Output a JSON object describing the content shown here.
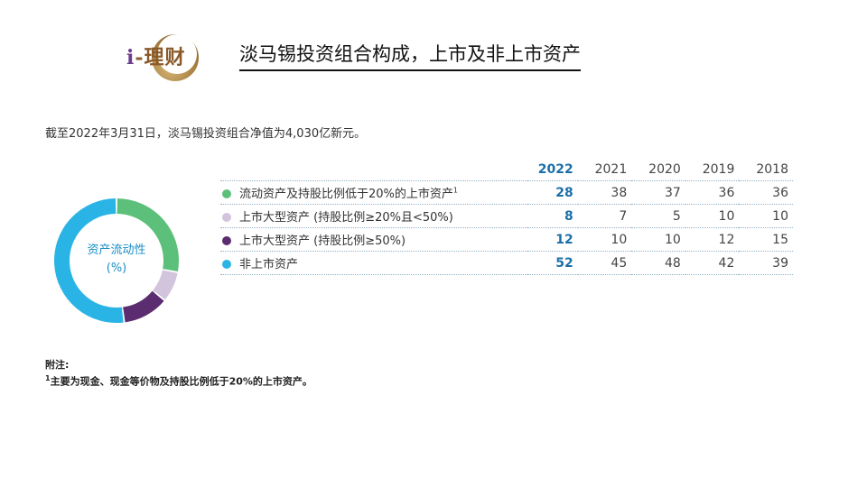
{
  "logo": {
    "text_i": "i",
    "text_rest": "-理财"
  },
  "title": "淡马锡投资组合构成，上市及非上市资产",
  "intro": "截至2022年3月31日，淡马锡投资组合净值为4,030亿新元。",
  "donut_center": {
    "line1": "资产流动性",
    "line2": "(%)"
  },
  "chart_data": {
    "type": "table",
    "columns": [
      "2022",
      "2021",
      "2020",
      "2019",
      "2018"
    ],
    "donut_year": "2022",
    "rows": [
      {
        "label": "流动资产及持股比例低于20%的上市资产",
        "footnote": "1",
        "color": "#5cc07a",
        "values": [
          28,
          38,
          37,
          36,
          36
        ]
      },
      {
        "label": "上市大型资产 (持股比例≥20%且<50%)",
        "footnote": "",
        "color": "#d2c4dc",
        "values": [
          8,
          7,
          5,
          10,
          10
        ]
      },
      {
        "label": "上市大型资产 (持股比例≥50%)",
        "footnote": "",
        "color": "#5b2c6f",
        "values": [
          12,
          10,
          10,
          12,
          15
        ]
      },
      {
        "label": "非上市资产",
        "footnote": "",
        "color": "#2ab4e6",
        "values": [
          52,
          45,
          48,
          42,
          39
        ]
      }
    ]
  },
  "notes": {
    "heading": "附注:",
    "marker": "1",
    "text": "主要为现金、现金等价物及持股比例低于20%的上市资产。"
  }
}
